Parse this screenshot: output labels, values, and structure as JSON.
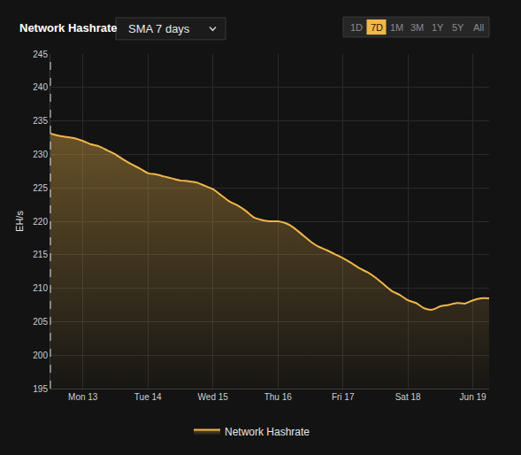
{
  "chart_data": {
    "type": "line",
    "title": "Network Hashrate",
    "dropdown": "SMA 7 days",
    "buttons": [
      "1D",
      "7D",
      "1M",
      "3M",
      "1Y",
      "5Y",
      "All"
    ],
    "selected": "7D",
    "y_label": "EH/s",
    "categories": [
      null,
      null,
      null,
      null,
      "Mon 13",
      null,
      null,
      null,
      null,
      null,
      null,
      null,
      "Tue 14",
      null,
      null,
      null,
      null,
      null,
      null,
      null,
      "Wed 15",
      null,
      null,
      null,
      null,
      null,
      null,
      null,
      "Thu 16",
      null,
      null,
      null,
      null,
      null,
      null,
      null,
      "Fri 17",
      null,
      null,
      null,
      null,
      null,
      null,
      null,
      "Sat 18",
      null,
      null,
      null,
      null,
      null,
      null,
      null,
      "Jun 19",
      null,
      null
    ],
    "series": [
      {
        "name": "Network Hashrate",
        "color": "#f0b64a",
        "values": [
          233.1,
          232.8,
          232.6,
          232.4,
          232.0,
          231.5,
          231.2,
          230.6,
          230.0,
          229.2,
          228.5,
          227.9,
          227.2,
          227.0,
          226.7,
          226.4,
          226.1,
          226.0,
          225.8,
          225.3,
          224.8,
          223.9,
          223.0,
          222.4,
          221.6,
          220.6,
          220.2,
          220.0,
          220.0,
          219.7,
          219.0,
          218.0,
          217.0,
          216.2,
          215.7,
          215.1,
          214.5,
          213.8,
          213.0,
          212.4,
          211.6,
          210.6,
          209.6,
          209.0,
          208.2,
          207.8,
          207.0,
          206.8,
          207.3,
          207.5,
          207.8,
          207.7,
          208.2,
          208.5,
          208.5
        ]
      }
    ],
    "ylim": [
      195,
      245
    ],
    "yticks": [
      195,
      200,
      205,
      210,
      215,
      220,
      225,
      230,
      235,
      240,
      245
    ],
    "grid": true,
    "legend": "bottom"
  }
}
